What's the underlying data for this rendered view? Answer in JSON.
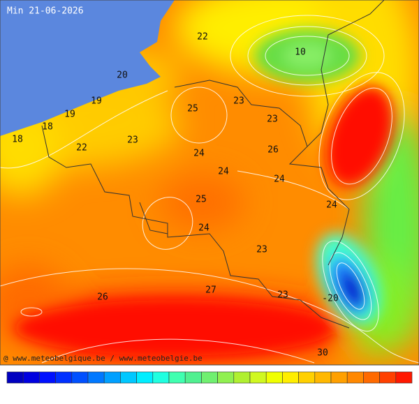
{
  "title": "Min 21-06-2026",
  "labels": [
    "22",
    "10",
    "20",
    "19",
    "19",
    "18",
    "18",
    "25",
    "23",
    "23",
    "22",
    "23",
    "26",
    "24",
    "24",
    "24",
    "25",
    "24",
    "24",
    "23",
    "27",
    "26",
    "23",
    "-20",
    "30"
  ],
  "credit": "@ www.meteobelgique.be / www.meteobelgie.be"
}
